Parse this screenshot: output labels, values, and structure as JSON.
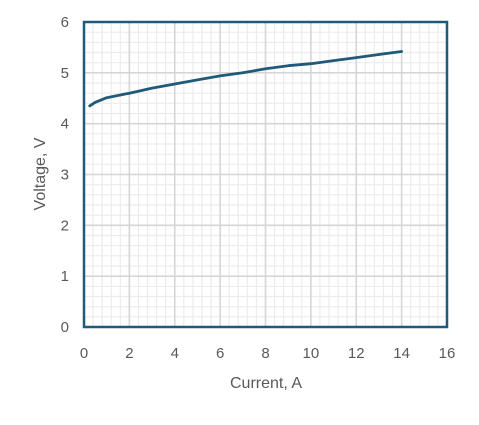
{
  "chart_data": {
    "type": "line",
    "title": "",
    "xlabel": "Current, A",
    "ylabel": "Voltage, V",
    "xlim": [
      0,
      16
    ],
    "ylim": [
      0,
      6
    ],
    "xticks": [
      0,
      2,
      4,
      6,
      8,
      10,
      12,
      14,
      16
    ],
    "yticks": [
      0,
      1,
      2,
      3,
      4,
      5,
      6
    ],
    "major_grid": true,
    "minor_grid": true,
    "minor_x_step": 0.4,
    "minor_y_step": 0.2,
    "legend": "none",
    "series": [
      {
        "x": [
          0.25,
          0.5,
          1,
          2,
          3,
          4,
          5,
          6,
          7,
          8,
          9,
          10,
          11,
          12,
          13,
          14
        ],
        "y": [
          4.35,
          4.42,
          4.51,
          4.6,
          4.7,
          4.78,
          4.86,
          4.94,
          5.0,
          5.08,
          5.14,
          5.18,
          5.24,
          5.3,
          5.36,
          5.42
        ],
        "color": "#1f5a78"
      }
    ],
    "colors": {
      "series": "#1f5a78",
      "plot_border": "#1f5a78",
      "major_grid": "#d6d6d6",
      "minor_grid": "#ececec",
      "text": "#595959"
    }
  }
}
